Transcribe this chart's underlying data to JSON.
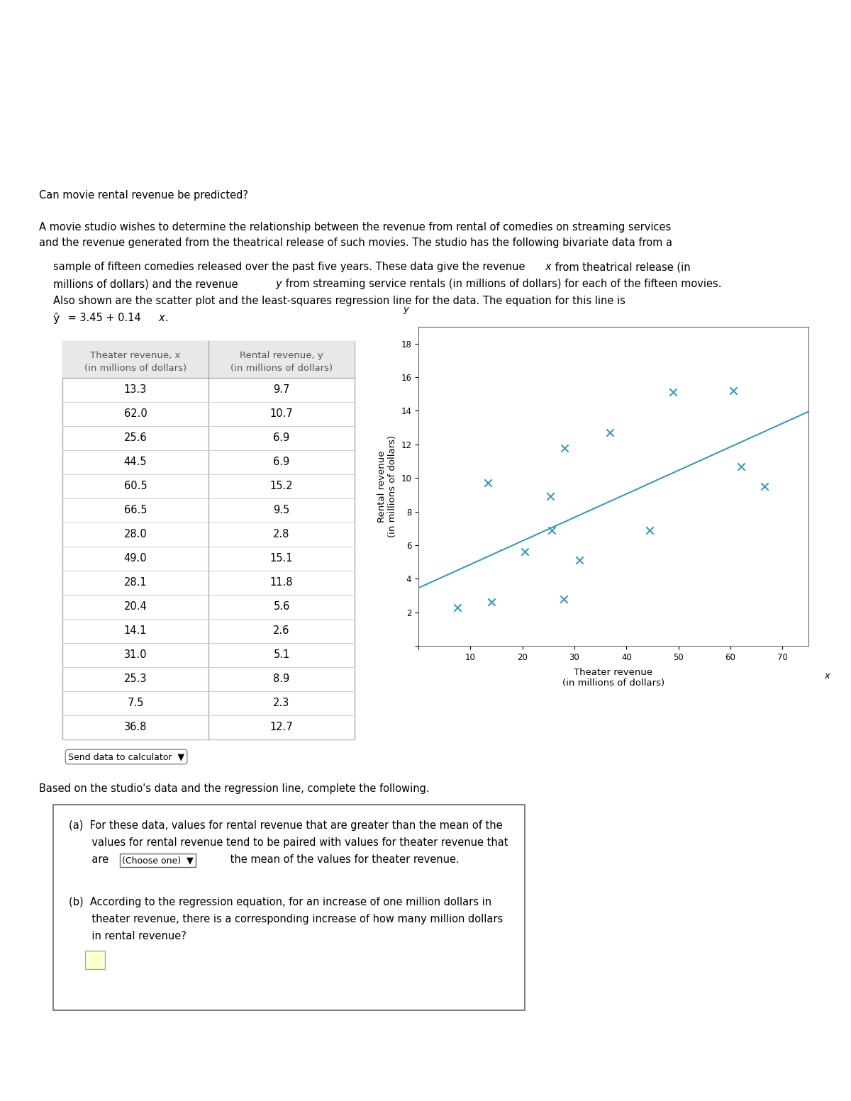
{
  "title": "Can movie rental revenue be predicted?",
  "theater_revenue": [
    13.3,
    62.0,
    25.6,
    44.5,
    60.5,
    66.5,
    28.0,
    49.0,
    28.1,
    20.4,
    14.1,
    31.0,
    25.3,
    7.5,
    36.8
  ],
  "rental_revenue": [
    9.7,
    10.7,
    6.9,
    6.9,
    15.2,
    9.5,
    2.8,
    15.1,
    11.8,
    5.6,
    2.6,
    5.1,
    8.9,
    2.3,
    12.7
  ],
  "col1_header1": "Theater revenue, x",
  "col1_header2": "(in millions of dollars)",
  "col2_header1": "Rental revenue, y",
  "col2_header2": "(in millions of dollars)",
  "scatter_color": "#3a9ab5",
  "line_color": "#3a9ab5",
  "regression_slope": 0.14,
  "regression_intercept": 3.45,
  "x_axis_label": "Theater revenue\n(in millions of dollars)",
  "y_axis_label": "Rental revenue\n(in millions of dollars)",
  "xlim": [
    0,
    75
  ],
  "ylim": [
    0,
    19
  ],
  "xticks": [
    0,
    10,
    20,
    30,
    40,
    50,
    60,
    70
  ],
  "yticks": [
    0,
    2,
    4,
    6,
    8,
    10,
    12,
    14,
    16,
    18
  ],
  "send_data_text": "Send data to calculator",
  "based_text": "Based on the studio's data and the regression line, complete the following.",
  "background_color": "#ffffff",
  "text_color": "#000000",
  "header_bg": "#e8e8e8",
  "table_line_color": "#aaaaaa"
}
